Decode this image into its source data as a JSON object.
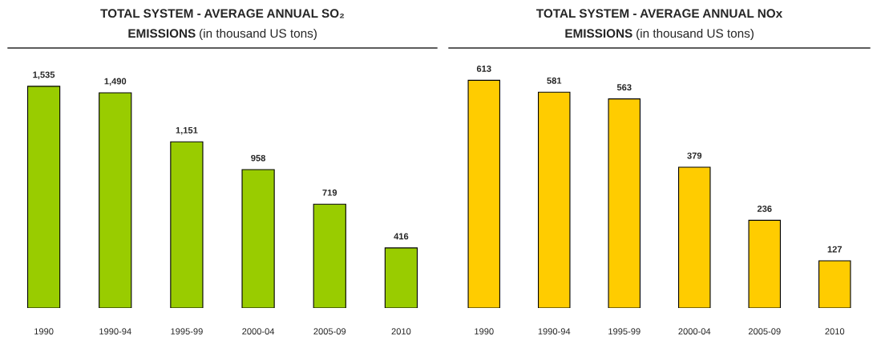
{
  "chart_data": [
    {
      "type": "bar",
      "title": "TOTAL SYSTEM - AVERAGE ANNUAL SO₂ EMISSIONS",
      "subtitle": "(in thousand US tons)",
      "categories": [
        "1990",
        "1990-94",
        "1995-99",
        "2000-04",
        "2005-09",
        "2010"
      ],
      "values": [
        1535,
        1490,
        1151,
        958,
        719,
        416
      ],
      "value_labels": [
        "1,535",
        "1,490",
        "1,151",
        "958",
        "719",
        "416"
      ],
      "color": "#99cc00",
      "ylim": [
        0,
        1800
      ],
      "tick_labels": "x",
      "grid": false,
      "legend": false
    },
    {
      "type": "bar",
      "title": "TOTAL SYSTEM - AVERAGE ANNUAL NOx EMISSIONS",
      "subtitle": "(in thousand US tons)",
      "categories": [
        "1990",
        "1990-94",
        "1995-99",
        "2000-04",
        "2005-09",
        "2010"
      ],
      "values": [
        613,
        581,
        563,
        379,
        236,
        127
      ],
      "color": "#ffcc00",
      "ylim": [
        0,
        700
      ],
      "data_labels": true,
      "tick_labels": "x",
      "grid": false,
      "legend": false
    }
  ]
}
